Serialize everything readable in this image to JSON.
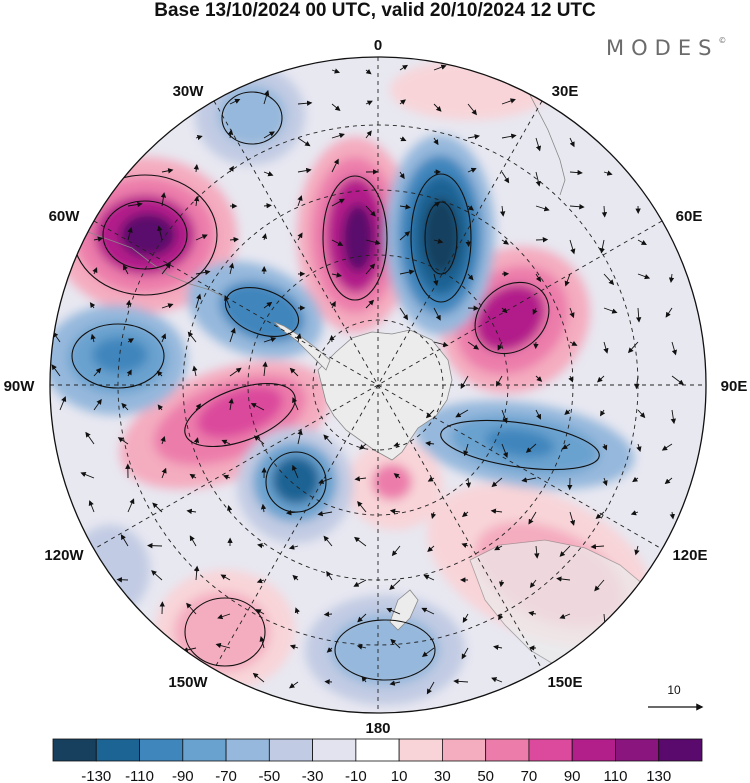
{
  "title": "Base 13/10/2024 00 UTC, valid 20/10/2024 12 UTC",
  "brand": "MODES",
  "brand_mark": "©",
  "longitude_labels": {
    "top": "0",
    "top_right": "30E",
    "right_upper": "60E",
    "right": "90E",
    "right_lower": "120E",
    "bottom_right": "150E",
    "bottom": "180",
    "bottom_left": "150W",
    "left_lower": "120W",
    "left": "90W",
    "left_upper": "60W",
    "top_left": "30W"
  },
  "vector_reference": {
    "value": "10"
  },
  "colorbar": {
    "labels": [
      "-130",
      "-110",
      "-90",
      "-70",
      "-50",
      "-30",
      "-10",
      "10",
      "30",
      "50",
      "70",
      "90",
      "110",
      "130"
    ],
    "colors": [
      "#17405f",
      "#1c6494",
      "#3f86bd",
      "#6aa2cf",
      "#95b8dc",
      "#c1cbe3",
      "#e3e3ef",
      "#ffffff",
      "#f8d4d8",
      "#f4acbf",
      "#ec7dab",
      "#db4a9c",
      "#b21e8a",
      "#8a157f",
      "#5a0a6c"
    ]
  },
  "colors": {
    "land": "#ececec",
    "graticule": "#222222",
    "coast": "#777777"
  }
}
